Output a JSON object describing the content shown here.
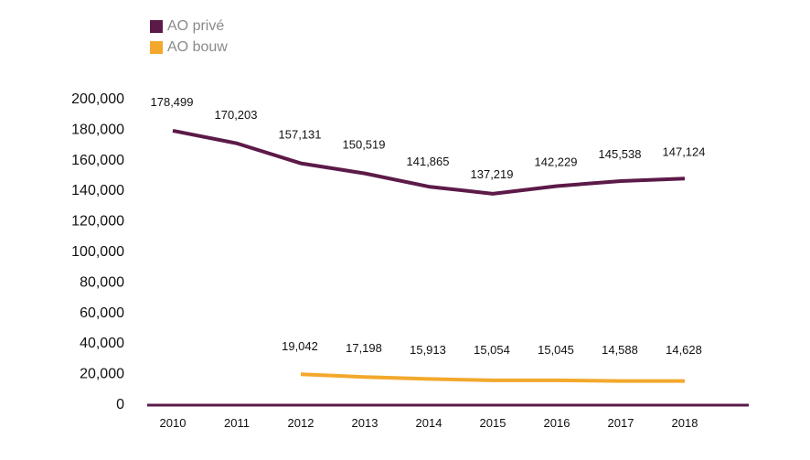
{
  "chart_data": {
    "type": "line",
    "title": "",
    "xlabel": "",
    "ylabel": "",
    "x": [
      "2010",
      "2011",
      "2012",
      "2013",
      "2014",
      "2015",
      "2016",
      "2017",
      "2018"
    ],
    "ylim": [
      0,
      200000
    ],
    "yticks": [
      0,
      20000,
      40000,
      60000,
      80000,
      100000,
      120000,
      140000,
      160000,
      180000,
      200000
    ],
    "ytick_labels": [
      "0",
      "20,000",
      "40,000",
      "60,000",
      "80,000",
      "100,000",
      "120,000",
      "140,000",
      "160,000",
      "180,000",
      "200,000"
    ],
    "grid": false,
    "legend_position": "top-left",
    "series": [
      {
        "name": "AO privé",
        "color": "#5c1a48",
        "values": [
          178499,
          170203,
          157131,
          150519,
          141865,
          137219,
          142229,
          145538,
          147124
        ],
        "labels": [
          "178,499",
          "170,203",
          "157,131",
          "150,519",
          "141,865",
          "137,219",
          "142,229",
          "145,538",
          "147,124"
        ]
      },
      {
        "name": "AO bouw",
        "color": "#f3a82c",
        "values": [
          null,
          null,
          19042,
          17198,
          15913,
          15054,
          15045,
          14588,
          14628
        ],
        "labels": [
          null,
          null,
          "19,042",
          "17,198",
          "15,913",
          "15,054",
          "15,045",
          "14,588",
          "14,628"
        ]
      }
    ]
  },
  "legend": {
    "items": [
      {
        "label": "AO privé",
        "color": "#5c1a48"
      },
      {
        "label": "AO bouw",
        "color": "#f3a82c"
      }
    ]
  },
  "axis_color": "#5c1a48"
}
